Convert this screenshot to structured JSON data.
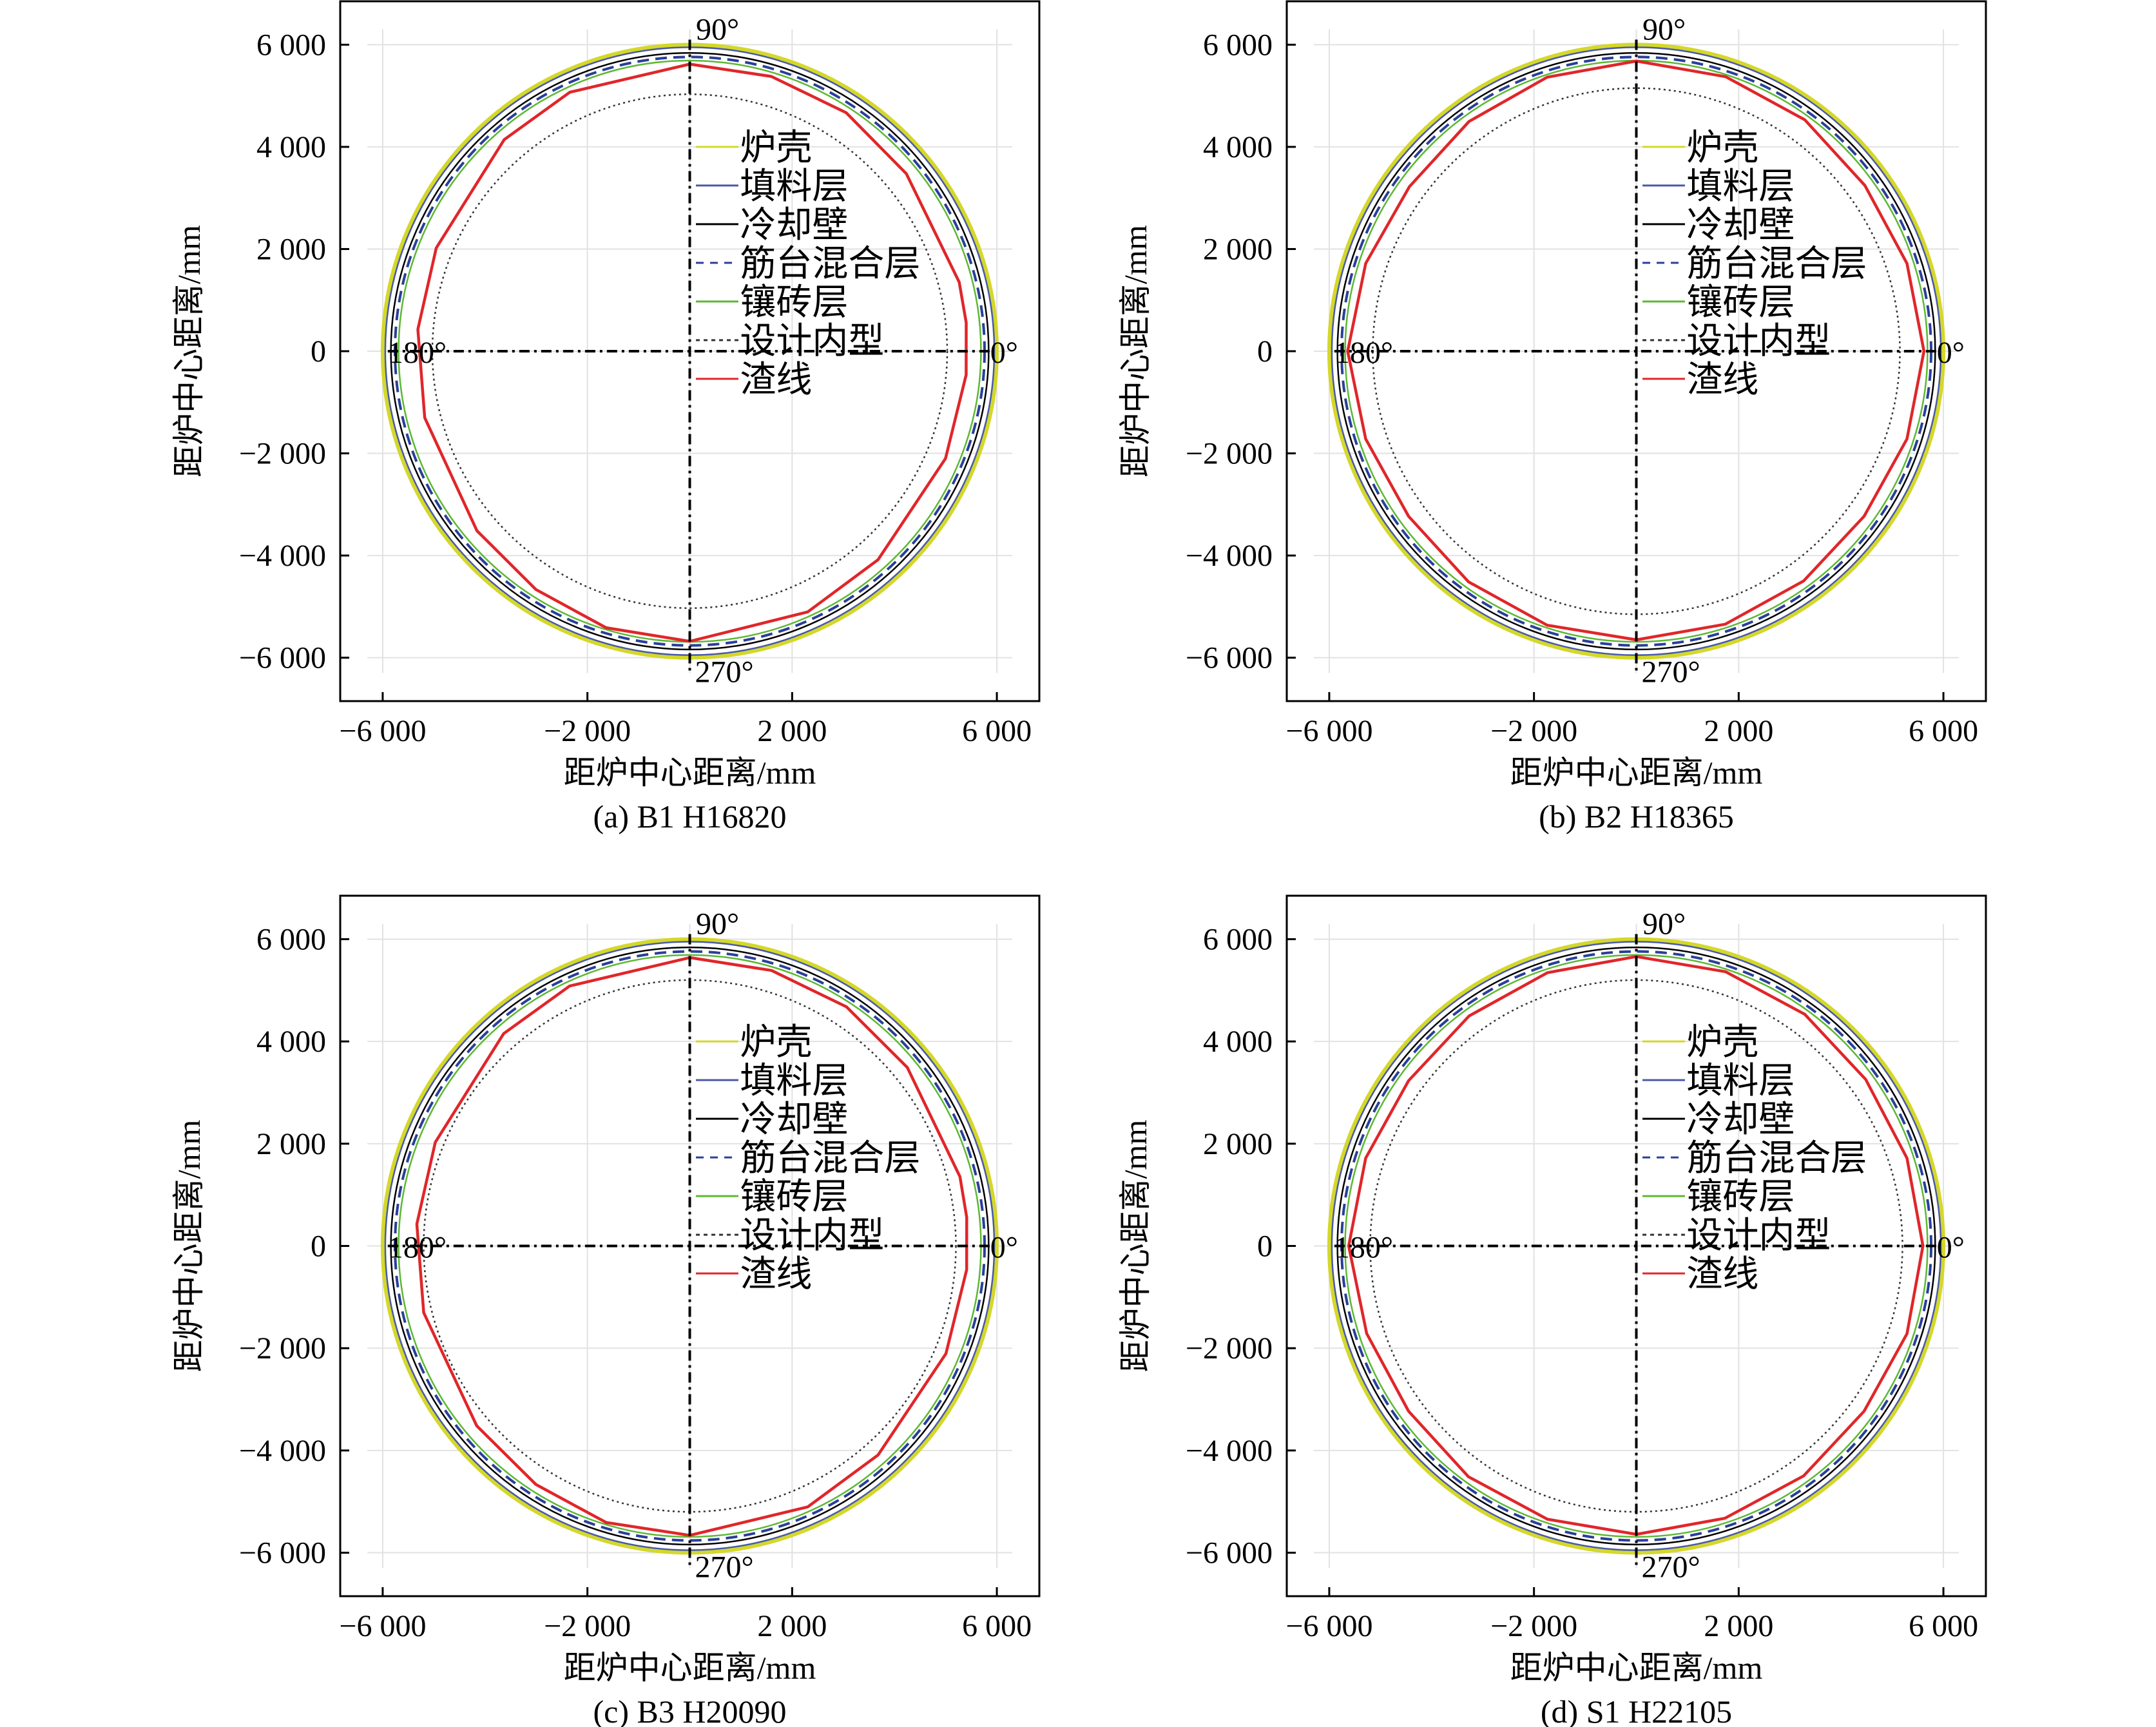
{
  "chart_data": [
    {
      "type": "line",
      "caption": "(a) B1 H16820",
      "xlabel": "距炉中心距离/mm",
      "ylabel": "距炉中心距离/mm",
      "xlim": [
        -6830,
        6830
      ],
      "ylim": [
        -6850,
        6850
      ],
      "xticks": [
        -6000,
        -2000,
        2000,
        6000
      ],
      "xtick_labels": [
        "−6 000",
        "−2 000",
        "2 000",
        "6 000"
      ],
      "yticks": [
        6000,
        4000,
        2000,
        0,
        -2000,
        -4000,
        -6000
      ],
      "ytick_labels": [
        "6 000",
        "4 000",
        "2 000",
        "0",
        "−2 000",
        "−4 000",
        "−6 000"
      ],
      "angle_labels": [
        "90°",
        "180°",
        "0°",
        "270°"
      ],
      "legend_position": "center-right",
      "circles": [
        {
          "name": "炉壳",
          "radius": 6000,
          "color": "#d4d82a",
          "style": "solid"
        },
        {
          "name": "填料层",
          "radius": 5950,
          "color": "#4a5aa8",
          "style": "solid"
        },
        {
          "name": "冷却壁",
          "radius": 5840,
          "color": "#000000",
          "style": "solid"
        },
        {
          "name": "筋台混合层",
          "radius": 5760,
          "color": "#2a3f9a",
          "style": "dashed"
        },
        {
          "name": "镶砖层",
          "radius": 5690,
          "color": "#5cb832",
          "style": "solid"
        },
        {
          "name": "设计内型",
          "radius": 5030,
          "color": "#333333",
          "style": "dotted"
        }
      ],
      "slag_line": {
        "name": "渣线",
        "color": "#e0262a",
        "angle_deg": [
          90,
          73.5,
          56.8,
          39.4,
          14.4,
          5.9,
          -4.9,
          -22.8,
          -48,
          -65.7,
          -90,
          -106.8,
          -122.8,
          -139.8,
          -165.9,
          175.4,
          157.8,
          131.2,
          114.8
        ],
        "radius": [
          5620,
          5610,
          5580,
          5475,
          5435,
          5430,
          5420,
          5420,
          5495,
          5600,
          5680,
          5655,
          5550,
          5445,
          5340,
          5330,
          5350,
          5505,
          5585
        ]
      }
    },
    {
      "type": "line",
      "caption": "(b) B2 H18365",
      "xlabel": "距炉中心距离/mm",
      "ylabel": "距炉中心距离/mm",
      "xlim": [
        -6830,
        6830
      ],
      "ylim": [
        -6850,
        6850
      ],
      "xticks": [
        -6000,
        -2000,
        2000,
        6000
      ],
      "xtick_labels": [
        "−6 000",
        "−2 000",
        "2 000",
        "6 000"
      ],
      "yticks": [
        6000,
        4000,
        2000,
        0,
        -2000,
        -4000,
        -6000
      ],
      "ytick_labels": [
        "6 000",
        "4 000",
        "2 000",
        "0",
        "−2 000",
        "−4 000",
        "−6 000"
      ],
      "angle_labels": [
        "90°",
        "180°",
        "0°",
        "270°"
      ],
      "legend_position": "center-right",
      "circles": [
        {
          "name": "炉壳",
          "radius": 6000,
          "color": "#d4d82a",
          "style": "solid"
        },
        {
          "name": "填料层",
          "radius": 5950,
          "color": "#4a5aa8",
          "style": "solid"
        },
        {
          "name": "冷却壁",
          "radius": 5840,
          "color": "#000000",
          "style": "solid"
        },
        {
          "name": "筋台混合层",
          "radius": 5760,
          "color": "#2a3f9a",
          "style": "dashed"
        },
        {
          "name": "镶砖层",
          "radius": 5690,
          "color": "#5cb832",
          "style": "solid"
        },
        {
          "name": "设计内型",
          "radius": 5150,
          "color": "#333333",
          "style": "dotted"
        }
      ],
      "slag_line": {
        "name": "渣线",
        "color": "#e0262a",
        "angle_deg": [
          90,
          72,
          54,
          36,
          18,
          0,
          -18,
          -36,
          -54,
          -72,
          -90,
          -108,
          -126,
          -144,
          -162,
          180,
          162,
          144,
          126,
          108
        ],
        "radius": [
          5680,
          5650,
          5600,
          5520,
          5560,
          5620,
          5560,
          5500,
          5560,
          5620,
          5650,
          5640,
          5580,
          5500,
          5560,
          5640,
          5560,
          5480,
          5560,
          5640
        ]
      }
    },
    {
      "type": "line",
      "caption": "(c) B3 H20090",
      "xlabel": "距炉中心距离/mm",
      "ylabel": "距炉中心距离/mm",
      "xlim": [
        -6830,
        6830
      ],
      "ylim": [
        -6850,
        6850
      ],
      "xticks": [
        -6000,
        -2000,
        2000,
        6000
      ],
      "xtick_labels": [
        "−6 000",
        "−2 000",
        "2 000",
        "6 000"
      ],
      "yticks": [
        6000,
        4000,
        2000,
        0,
        -2000,
        -4000,
        -6000
      ],
      "ytick_labels": [
        "6 000",
        "4 000",
        "2 000",
        "0",
        "−2 000",
        "−4 000",
        "−6 000"
      ],
      "angle_labels": [
        "90°",
        "180°",
        "0°",
        "270°"
      ],
      "legend_position": "center-right",
      "circles": [
        {
          "name": "炉壳",
          "radius": 6000,
          "color": "#d4d82a",
          "style": "solid"
        },
        {
          "name": "填料层",
          "radius": 5950,
          "color": "#4a5aa8",
          "style": "solid"
        },
        {
          "name": "冷却壁",
          "radius": 5840,
          "color": "#000000",
          "style": "solid"
        },
        {
          "name": "筋台混合层",
          "radius": 5760,
          "color": "#2a3f9a",
          "style": "dashed"
        },
        {
          "name": "镶砖层",
          "radius": 5690,
          "color": "#5cb832",
          "style": "solid"
        },
        {
          "name": "设计内型",
          "radius": 5200,
          "color": "#333333",
          "style": "dotted"
        }
      ],
      "slag_line": {
        "name": "渣线",
        "color": "#e0262a",
        "angle_deg": [
          90,
          73.5,
          56.8,
          39.4,
          14.4,
          5.9,
          -4.9,
          -22.8,
          -48,
          -65.7,
          -90,
          -106.8,
          -122.8,
          -139.8,
          -165.9,
          175.4,
          157.8,
          131.2,
          114.8
        ],
        "radius": [
          5640,
          5620,
          5590,
          5500,
          5450,
          5440,
          5430,
          5430,
          5500,
          5600,
          5660,
          5650,
          5550,
          5450,
          5360,
          5350,
          5370,
          5520,
          5600
        ]
      }
    },
    {
      "type": "line",
      "caption": "(d) S1 H22105",
      "xlabel": "距炉中心距离/mm",
      "ylabel": "距炉中心距离/mm",
      "xlim": [
        -6830,
        6830
      ],
      "ylim": [
        -6850,
        6850
      ],
      "xticks": [
        -6000,
        -2000,
        2000,
        6000
      ],
      "xtick_labels": [
        "−6 000",
        "−2 000",
        "2 000",
        "6 000"
      ],
      "yticks": [
        6000,
        4000,
        2000,
        0,
        -2000,
        -4000,
        -6000
      ],
      "ytick_labels": [
        "6 000",
        "4 000",
        "2 000",
        "0",
        "−2 000",
        "−4 000",
        "−6 000"
      ],
      "angle_labels": [
        "90°",
        "180°",
        "0°",
        "270°"
      ],
      "legend_position": "center-right",
      "circles": [
        {
          "name": "炉壳",
          "radius": 6000,
          "color": "#d4d82a",
          "style": "solid"
        },
        {
          "name": "填料层",
          "radius": 5950,
          "color": "#4a5aa8",
          "style": "solid"
        },
        {
          "name": "冷却壁",
          "radius": 5840,
          "color": "#000000",
          "style": "solid"
        },
        {
          "name": "筋台混合层",
          "radius": 5760,
          "color": "#2a3f9a",
          "style": "dashed"
        },
        {
          "name": "镶砖层",
          "radius": 5690,
          "color": "#5cb832",
          "style": "solid"
        },
        {
          "name": "设计内型",
          "radius": 5200,
          "color": "#333333",
          "style": "dotted"
        }
      ],
      "slag_line": {
        "name": "渣线",
        "color": "#e0262a",
        "angle_deg": [
          90,
          72,
          54,
          36,
          18,
          0,
          -18,
          -36,
          -54,
          -72,
          -90,
          -108,
          -126,
          -144,
          -162,
          180,
          162,
          144,
          126,
          108
        ],
        "radius": [
          5660,
          5640,
          5600,
          5540,
          5560,
          5600,
          5560,
          5500,
          5560,
          5600,
          5640,
          5620,
          5580,
          5500,
          5540,
          5620,
          5560,
          5500,
          5560,
          5620
        ]
      }
    }
  ]
}
